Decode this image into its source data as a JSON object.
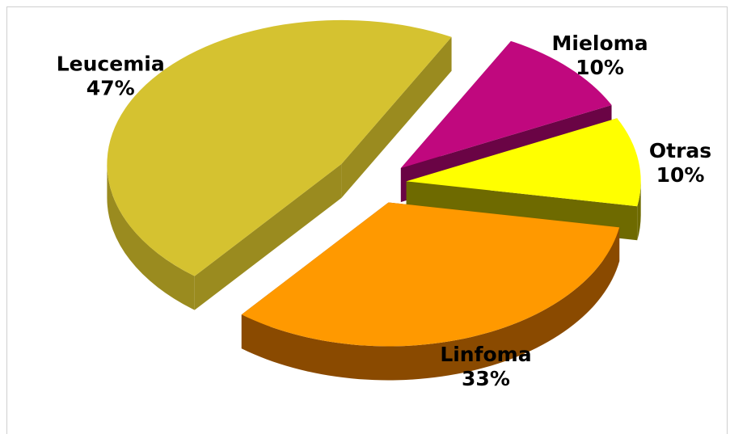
{
  "chart_data": {
    "type": "pie",
    "style": "3d-exploded",
    "slices": [
      {
        "name": "Leucemia",
        "value": 47,
        "pct_label": "47%",
        "color": "#D5C230",
        "side_color": "#9A8B1F"
      },
      {
        "name": "Mieloma",
        "value": 10,
        "pct_label": "10%",
        "color": "#C0087E",
        "side_color": "#6A0445"
      },
      {
        "name": "Otras",
        "value": 10,
        "pct_label": "10%",
        "color": "#FFFF00",
        "side_color": "#6E6A00"
      },
      {
        "name": "Linfoma",
        "value": 33,
        "pct_label": "33%",
        "color": "#FF9900",
        "side_color": "#8A4A00"
      }
    ]
  }
}
